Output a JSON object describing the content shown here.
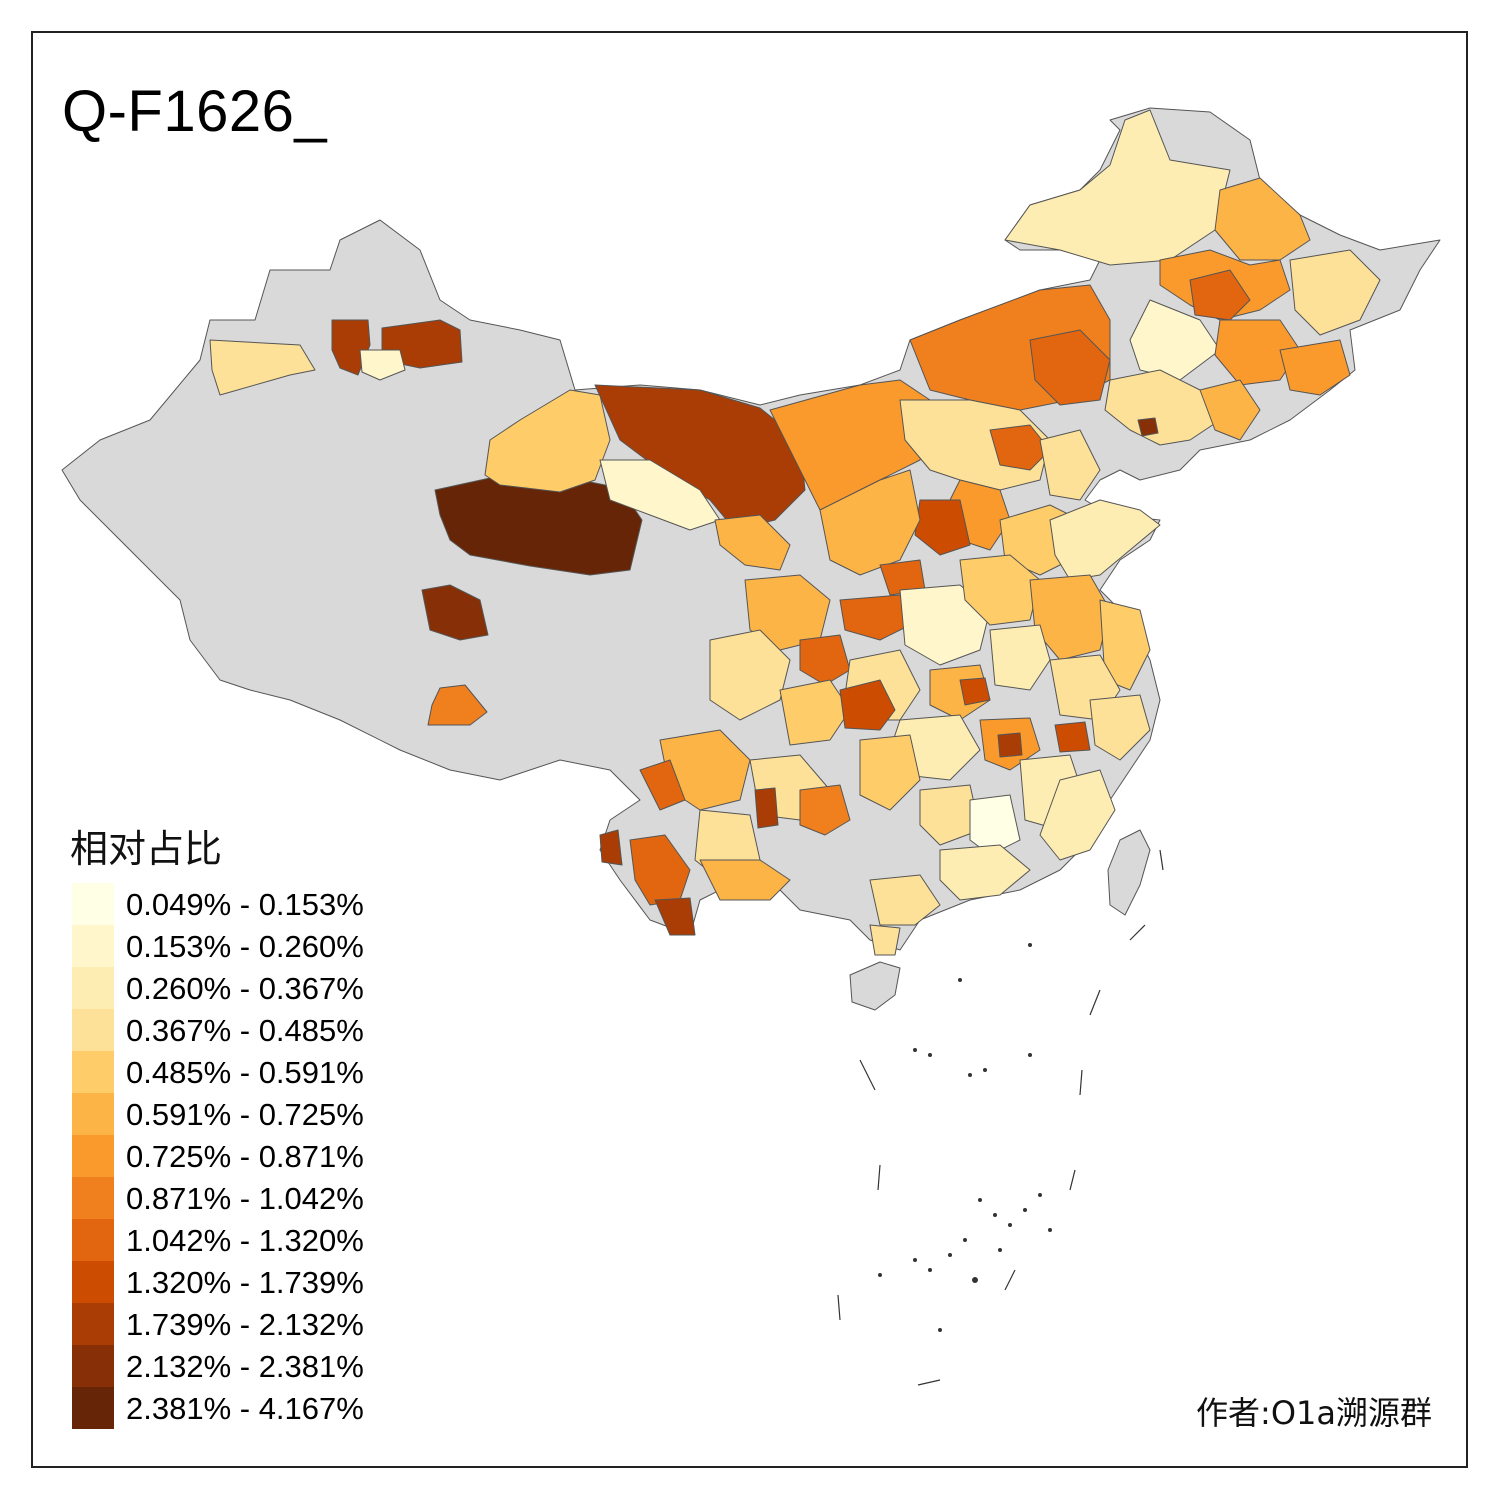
{
  "title": "Q-F1626_",
  "legend": {
    "title": "相对占比",
    "items": [
      {
        "label": "0.049% - 0.153%",
        "color": "#FFFFE5"
      },
      {
        "label": "0.153% - 0.260%",
        "color": "#FFF6CC"
      },
      {
        "label": "0.260% - 0.367%",
        "color": "#FEEDB2"
      },
      {
        "label": "0.367% - 0.485%",
        "color": "#FEE199"
      },
      {
        "label": "0.485% - 0.591%",
        "color": "#FECD6A"
      },
      {
        "label": "0.591% - 0.725%",
        "color": "#FDB446"
      },
      {
        "label": "0.725% - 0.871%",
        "color": "#FB9A2C"
      },
      {
        "label": "0.871% - 1.042%",
        "color": "#F0801E"
      },
      {
        "label": "1.042% - 1.320%",
        "color": "#E2660F"
      },
      {
        "label": "1.320% - 1.739%",
        "color": "#CC4C02"
      },
      {
        "label": "1.739% - 2.132%",
        "color": "#A93D05"
      },
      {
        "label": "2.132% - 2.381%",
        "color": "#873007"
      },
      {
        "label": "2.381% - 4.167%",
        "color": "#662506"
      }
    ]
  },
  "no_data_color": "#D9D9D9",
  "author": "作者:O1a溯源群"
}
